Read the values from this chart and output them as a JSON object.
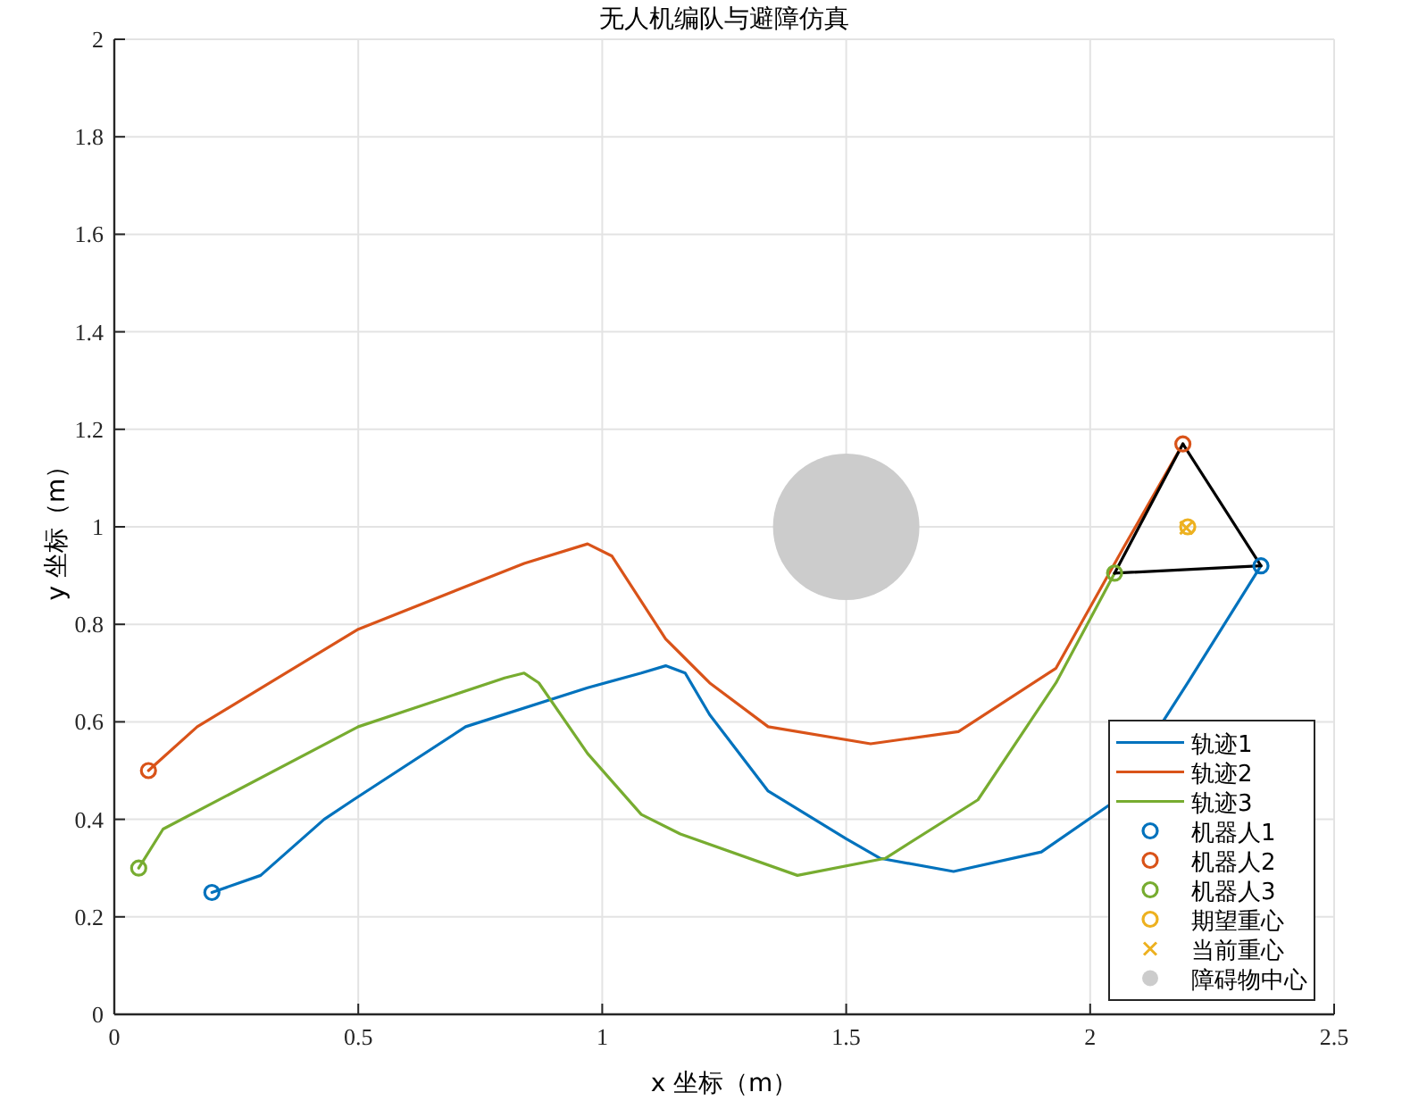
{
  "chart_data": {
    "type": "line",
    "title": "无人机编队与避障仿真",
    "xlabel": "x 坐标（m）",
    "ylabel": "y 坐标（m）",
    "xlim": [
      0,
      2.5
    ],
    "ylim": [
      0,
      2
    ],
    "xticks": [
      0,
      0.5,
      1,
      1.5,
      2,
      2.5
    ],
    "yticks": [
      0,
      0.2,
      0.4,
      0.6,
      0.8,
      1,
      1.2,
      1.4,
      1.6,
      1.8,
      2
    ],
    "grid": true,
    "legend": "bottom right",
    "series": [
      {
        "name": "轨迹1",
        "color": "#0072bd",
        "x": [
          0.2,
          0.3,
          0.43,
          0.49,
          0.72,
          0.97,
          1.08,
          1.13,
          1.17,
          1.22,
          1.34,
          1.5,
          1.57,
          1.72,
          1.9,
          2.04,
          2.2,
          2.35
        ],
        "values": [
          0.25,
          0.285,
          0.4,
          0.44,
          0.59,
          0.67,
          0.7,
          0.715,
          0.7,
          0.615,
          0.458,
          0.36,
          0.32,
          0.293,
          0.333,
          0.43,
          0.68,
          0.92
        ]
      },
      {
        "name": "轨迹2",
        "color": "#d95319",
        "x": [
          0.07,
          0.17,
          0.5,
          0.84,
          0.97,
          1.02,
          1.13,
          1.22,
          1.34,
          1.55,
          1.73,
          1.93,
          2.07,
          2.19
        ],
        "values": [
          0.5,
          0.59,
          0.79,
          0.925,
          0.965,
          0.94,
          0.77,
          0.68,
          0.59,
          0.555,
          0.58,
          0.71,
          0.96,
          1.17
        ]
      },
      {
        "name": "轨迹3",
        "color": "#77ac30",
        "x": [
          0.05,
          0.1,
          0.5,
          0.8,
          0.84,
          0.87,
          0.97,
          1.08,
          1.16,
          1.4,
          1.58,
          1.77,
          1.93,
          2.05
        ],
        "values": [
          0.3,
          0.38,
          0.59,
          0.69,
          0.7,
          0.68,
          0.535,
          0.41,
          0.37,
          0.285,
          0.32,
          0.44,
          0.68,
          0.905
        ]
      },
      {
        "color": "#000000",
        "x": [
          2.05,
          2.19
        ],
        "values": [
          0.905,
          1.17
        ]
      },
      {
        "color": "#000000",
        "x": [
          2.19,
          2.35
        ],
        "values": [
          1.17,
          0.92
        ]
      },
      {
        "color": "#000000",
        "x": [
          2.05,
          2.35
        ],
        "values": [
          0.905,
          0.92
        ]
      },
      {
        "name": "机器人1",
        "type": "scatter",
        "marker": "circle",
        "color": "#0072bd",
        "x": [
          2.35,
          0.2
        ],
        "values": [
          0.92,
          0.25
        ]
      },
      {
        "name": "机器人2",
        "type": "scatter",
        "marker": "circle",
        "color": "#d95319",
        "x": [
          2.19,
          0.07
        ],
        "values": [
          1.17,
          0.5
        ]
      },
      {
        "name": "机器人3",
        "type": "scatter",
        "marker": "circle",
        "color": "#77ac30",
        "x": [
          2.05,
          0.05
        ],
        "values": [
          0.905,
          0.3
        ]
      },
      {
        "name": "期望重心",
        "type": "scatter",
        "marker": "circle",
        "color": "#edb120",
        "x": [
          2.2
        ],
        "values": [
          1.0
        ]
      },
      {
        "name": "当前重心",
        "type": "scatter",
        "marker": "cross",
        "color": "#edb120",
        "x": [
          2.197
        ],
        "values": [
          0.998
        ]
      },
      {
        "name": "障碍物中心",
        "type": "bubble",
        "color": "#cccccc",
        "x": [
          1.5
        ],
        "values": [
          1.0
        ],
        "sizes": [
          1
        ]
      }
    ]
  }
}
